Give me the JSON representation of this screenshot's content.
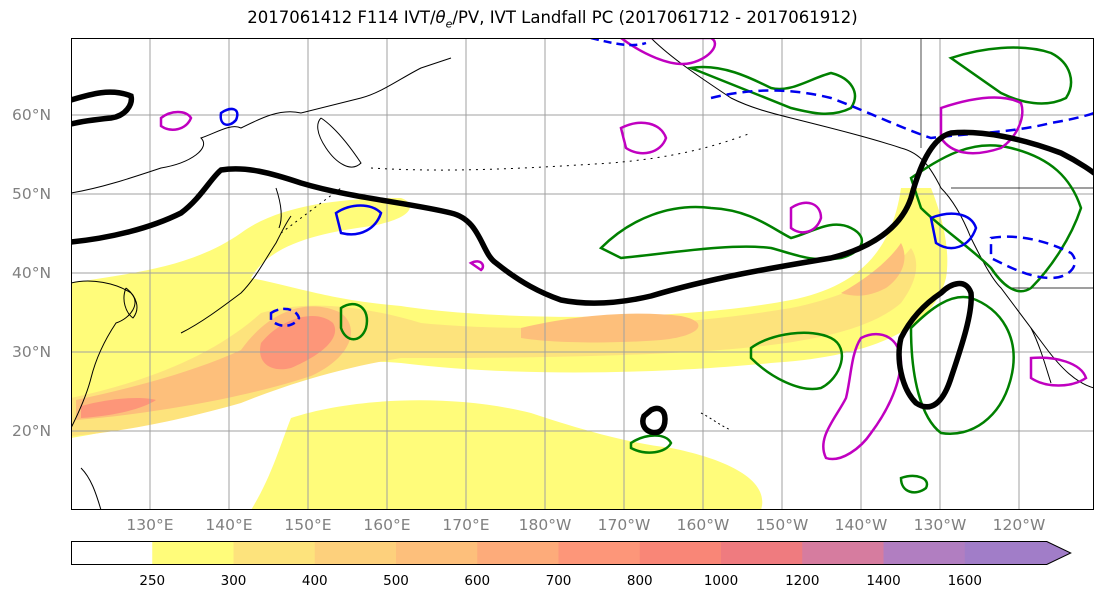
{
  "title": {
    "prefix": "2017061412 F114 IVT/",
    "theta": "θ",
    "sub": "e",
    "suffix": "/PV, IVT Landfall PC (2017061712 - 2017061912)"
  },
  "lat_labels": [
    "60°N",
    "50°N",
    "40°N",
    "30°N",
    "20°N"
  ],
  "lon_labels": [
    "130°E",
    "140°E",
    "150°E",
    "160°E",
    "170°E",
    "180°W",
    "170°W",
    "160°W",
    "150°W",
    "140°W",
    "130°W",
    "120°W"
  ],
  "colorbar": {
    "ticks": [
      "250",
      "300",
      "400",
      "500",
      "600",
      "700",
      "800",
      "1000",
      "1200",
      "1400",
      "1600"
    ],
    "colors": [
      "#ffffff",
      "#fffc7a",
      "#fde37c",
      "#fdd07c",
      "#fdbf7b",
      "#fdab7a",
      "#fd9679",
      "#f98677",
      "#ef7b7f",
      "#d67c9f",
      "#b17ec1",
      "#a17dc8"
    ]
  },
  "colors": {
    "pv_contour": "#000000",
    "theta_e_green": "#008000",
    "theta_e_magenta": "#c000c0",
    "theta_e_blue": "#0000ee",
    "grid": "#a0a0a0",
    "axis_label": "#808080"
  }
}
